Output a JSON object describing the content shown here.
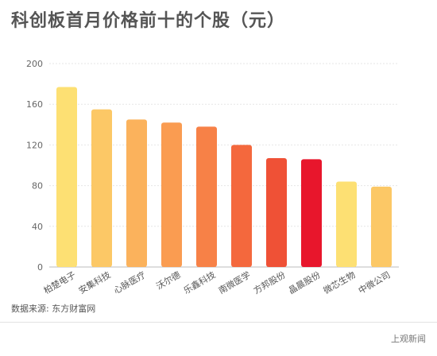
{
  "title": "科创板首月价格前十的个股（元）",
  "source": "数据来源: 东方财富网",
  "brand": "上观新闻",
  "chart_data": {
    "type": "bar",
    "categories": [
      "柏楚电子",
      "安集科技",
      "心脉医疗",
      "沃尔德",
      "乐鑫科技",
      "南微医学",
      "方邦股份",
      "晶晨股份",
      "微芯生物",
      "中微公司"
    ],
    "values": [
      177,
      155,
      145,
      142,
      138,
      120,
      107,
      106,
      84,
      79
    ],
    "colors": [
      "#fde073",
      "#fcc866",
      "#fbb25c",
      "#fa9c51",
      "#f78147",
      "#f4683d",
      "#ef5136",
      "#e8162c",
      "#fde073",
      "#fcc866"
    ],
    "ylim": [
      0,
      200
    ],
    "yticks": [
      0,
      40,
      80,
      120,
      160,
      200
    ],
    "grid": true,
    "title": "",
    "xlabel": "",
    "ylabel": ""
  }
}
